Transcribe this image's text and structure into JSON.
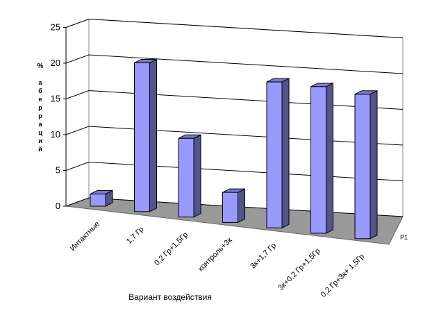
{
  "chart_data": {
    "type": "bar3d",
    "x_label": "Вариант воздействия",
    "y_label_unit": "%",
    "y_label": "аберраций",
    "categories": [
      "Интактные",
      "1,7 Гр",
      "0,2 Гр+1,5Гр",
      "контроль+3к",
      "3к+1,7 Гр",
      "3к+0,2 Гр+1,5Гр",
      "0,2 Гр+3к+ 1,5Гр"
    ],
    "series": [
      {
        "name": "Р1",
        "color": "#9999ff",
        "values": [
          1.7,
          20.8,
          11,
          4.2,
          20.4,
          20.5,
          20.2
        ]
      }
    ],
    "ylim": [
      0,
      25
    ],
    "yticks": [
      0,
      5,
      10,
      15,
      20,
      25
    ],
    "grid": true
  }
}
